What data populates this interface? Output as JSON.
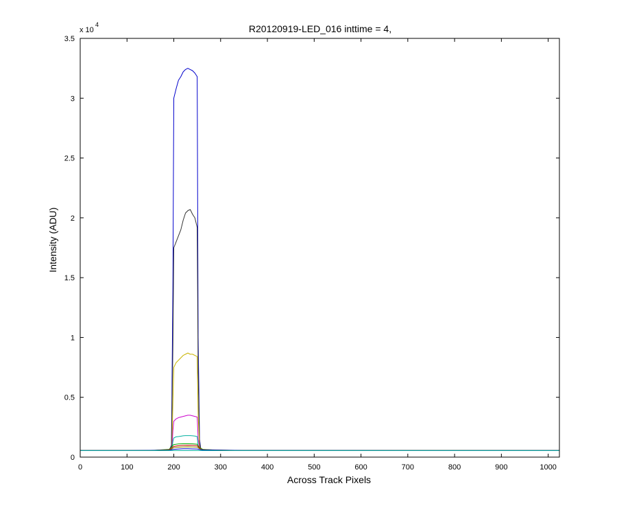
{
  "chart_data": {
    "type": "line",
    "title": "R20120919-LED_016 inttime = 4,",
    "xlabel": "Across Track Pixels",
    "ylabel": "Intensity (ADU)",
    "xlim": [
      0,
      1024
    ],
    "ylim": [
      0,
      35000
    ],
    "x_ticks": [
      0,
      100,
      200,
      300,
      400,
      500,
      600,
      700,
      800,
      900,
      1000
    ],
    "x_tick_labels": [
      "0",
      "100",
      "200",
      "300",
      "400",
      "500",
      "600",
      "700",
      "800",
      "900",
      "1000"
    ],
    "y_ticks": [
      0,
      5000,
      10000,
      15000,
      20000,
      25000,
      30000,
      35000
    ],
    "y_tick_labels": [
      "0",
      "0.5",
      "1",
      "1.5",
      "2",
      "2.5",
      "3",
      "3.5"
    ],
    "y_exponent_base": "x 10",
    "y_exponent_power": "4",
    "grid": false,
    "series": [
      {
        "color": "#0000cc",
        "x": [
          0,
          190,
          195,
          198,
          200,
          205,
          210,
          215,
          220,
          225,
          230,
          235,
          240,
          245,
          250,
          252,
          255,
          258,
          262,
          300,
          1024
        ],
        "y": [
          550,
          550,
          1000,
          14000,
          30000,
          30800,
          31500,
          31800,
          32200,
          32400,
          32500,
          32400,
          32300,
          32100,
          31800,
          10000,
          1500,
          600,
          550,
          550,
          550
        ]
      },
      {
        "color": "#333333",
        "x": [
          0,
          190,
          195,
          198,
          200,
          205,
          210,
          215,
          220,
          225,
          230,
          235,
          240,
          245,
          250,
          252,
          255,
          258,
          262,
          1024
        ],
        "y": [
          550,
          550,
          900,
          9000,
          17500,
          18000,
          18500,
          19000,
          19800,
          20400,
          20600,
          20700,
          20300,
          20000,
          19200,
          7000,
          1200,
          600,
          550,
          550
        ]
      },
      {
        "color": "#c8b400",
        "x": [
          0,
          190,
          196,
          198,
          200,
          205,
          210,
          215,
          220,
          225,
          230,
          235,
          240,
          245,
          250,
          252,
          255,
          258,
          262,
          1024
        ],
        "y": [
          550,
          550,
          800,
          4500,
          7500,
          7900,
          8100,
          8300,
          8500,
          8600,
          8700,
          8600,
          8600,
          8500,
          8400,
          3500,
          900,
          600,
          550,
          550
        ]
      },
      {
        "color": "#cc00cc",
        "x": [
          0,
          190,
          196,
          198,
          200,
          205,
          210,
          215,
          220,
          225,
          230,
          235,
          240,
          245,
          250,
          252,
          255,
          258,
          262,
          1024
        ],
        "y": [
          550,
          550,
          700,
          2200,
          3000,
          3200,
          3300,
          3350,
          3400,
          3450,
          3500,
          3500,
          3450,
          3400,
          3350,
          1500,
          800,
          600,
          550,
          550
        ]
      },
      {
        "color": "#00b0a0",
        "x": [
          0,
          190,
          196,
          198,
          200,
          205,
          210,
          215,
          220,
          225,
          230,
          235,
          240,
          245,
          250,
          252,
          255,
          258,
          262,
          1024
        ],
        "y": [
          550,
          550,
          650,
          1300,
          1600,
          1700,
          1720,
          1750,
          1780,
          1800,
          1800,
          1800,
          1780,
          1760,
          1720,
          900,
          700,
          600,
          550,
          550
        ]
      },
      {
        "color": "#00aa00",
        "x": [
          0,
          150,
          190,
          196,
          200,
          210,
          220,
          230,
          240,
          250,
          255,
          262,
          300,
          1024
        ],
        "y": [
          550,
          550,
          650,
          900,
          1050,
          1100,
          1120,
          1120,
          1110,
          1080,
          800,
          650,
          560,
          550
        ]
      },
      {
        "color": "#cc0000",
        "x": [
          0,
          150,
          190,
          196,
          200,
          210,
          220,
          230,
          240,
          250,
          255,
          262,
          300,
          1024
        ],
        "y": [
          550,
          550,
          620,
          800,
          900,
          950,
          980,
          990,
          980,
          960,
          750,
          620,
          560,
          550
        ]
      },
      {
        "color": "#888800",
        "x": [
          0,
          120,
          190,
          196,
          200,
          210,
          220,
          230,
          240,
          250,
          255,
          262,
          330,
          1024
        ],
        "y": [
          550,
          550,
          600,
          700,
          800,
          830,
          850,
          860,
          850,
          840,
          700,
          620,
          570,
          550
        ]
      },
      {
        "color": "#0000cc",
        "x": [
          0,
          100,
          190,
          196,
          200,
          210,
          220,
          230,
          240,
          250,
          255,
          262,
          350,
          1024
        ],
        "y": [
          550,
          550,
          580,
          620,
          650,
          680,
          700,
          700,
          690,
          680,
          640,
          600,
          560,
          550
        ]
      },
      {
        "color": "#00b0a0",
        "x": [
          0,
          1024
        ],
        "y": [
          550,
          550
        ]
      }
    ]
  }
}
